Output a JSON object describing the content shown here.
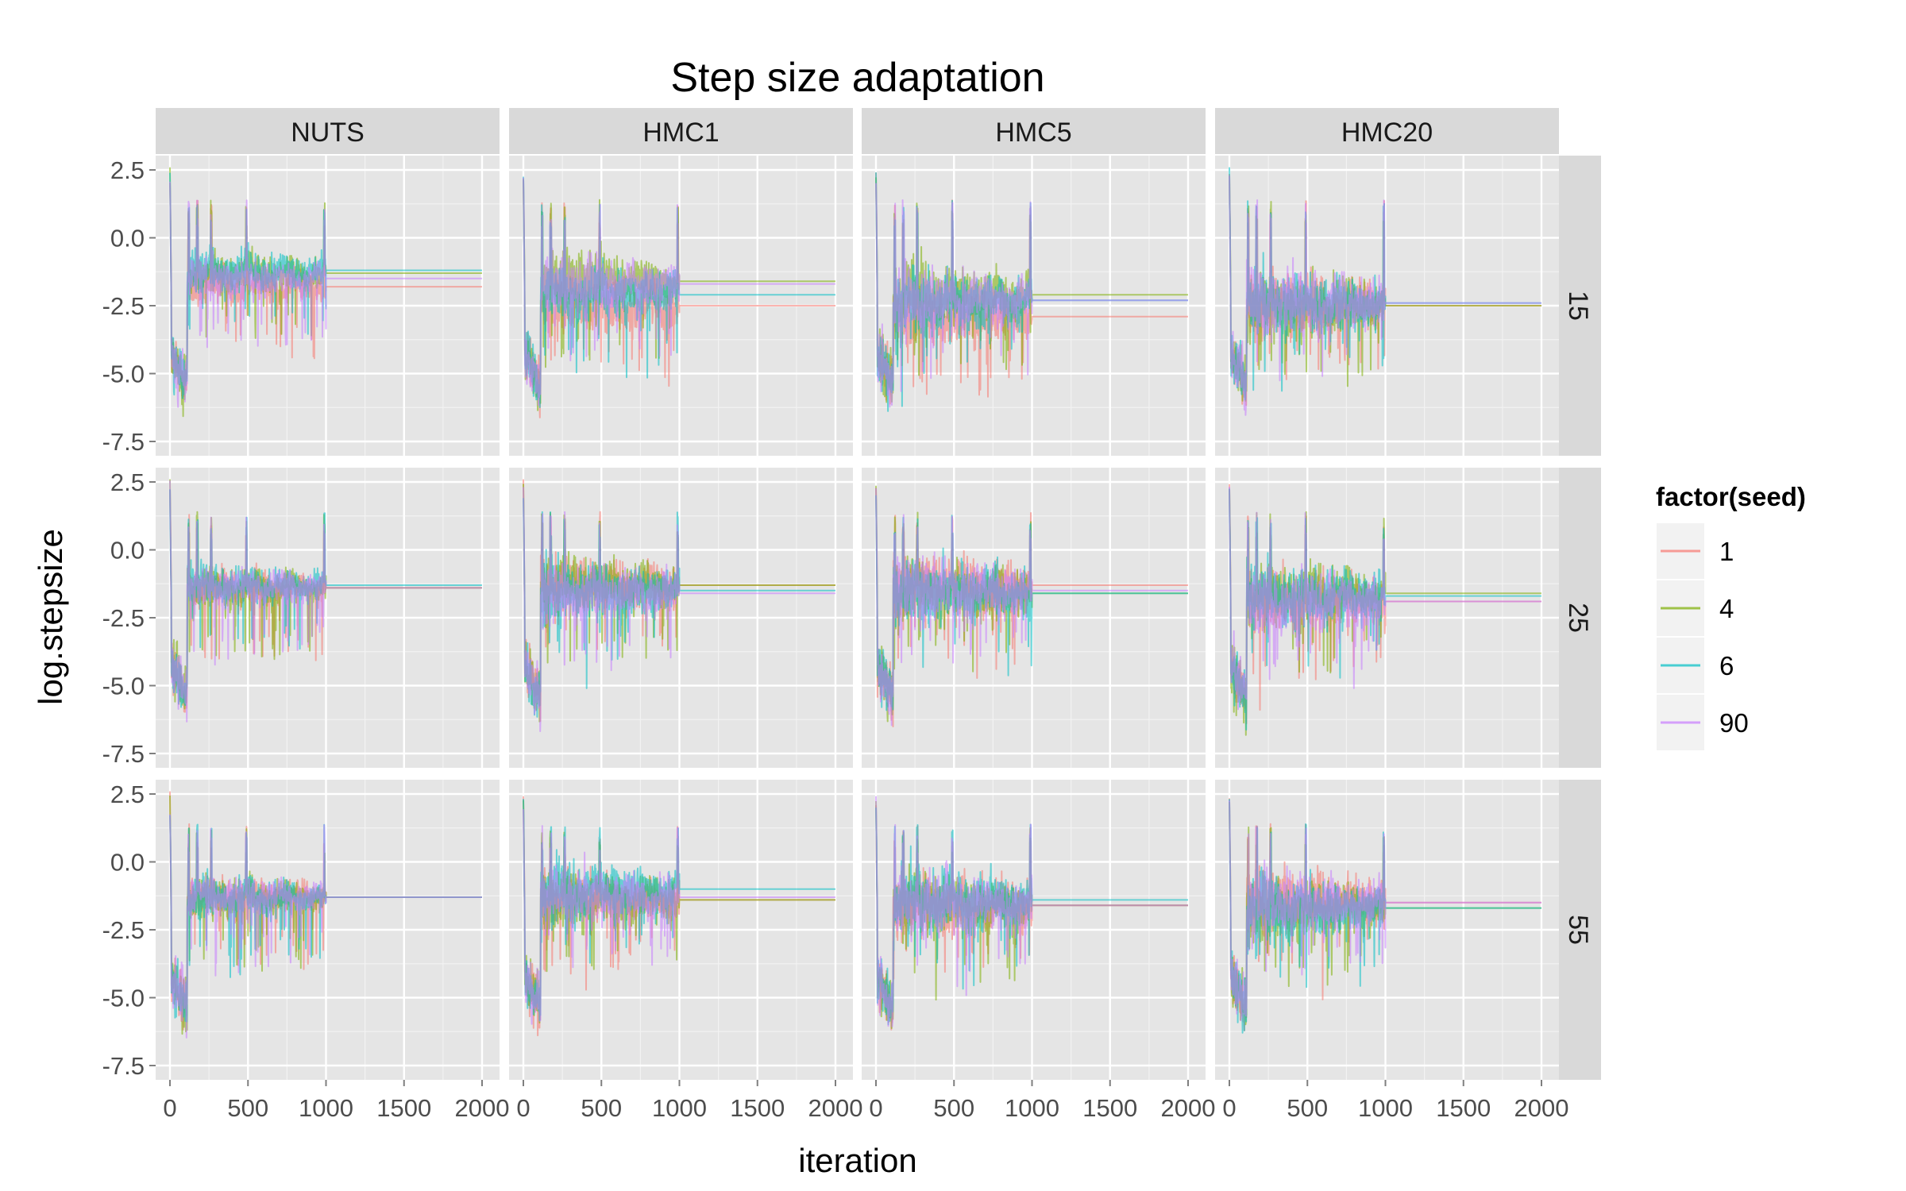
{
  "chart_data": {
    "type": "line",
    "title": "Step size adaptation",
    "xlabel": "iteration",
    "ylabel": "log.stepsize",
    "xlim": [
      0,
      2000
    ],
    "ylim": [
      -7.5,
      2.5
    ],
    "x_ticks": [
      "0",
      "500",
      "1000",
      "1500",
      "2000"
    ],
    "y_ticks": [
      "2.5",
      "0.0",
      "-2.5",
      "-5.0",
      "-7.5"
    ],
    "y_tick_values": [
      2.5,
      0.0,
      -2.5,
      -5.0,
      -7.5
    ],
    "x_tick_values": [
      0,
      500,
      1000,
      1500,
      2000
    ],
    "grid": true,
    "facet_cols": [
      "NUTS",
      "HMC1",
      "HMC5",
      "HMC20"
    ],
    "facet_rows": [
      "15",
      "25",
      "55"
    ],
    "legend": {
      "title": "factor(seed)",
      "position": "right",
      "entries": [
        {
          "label": "1",
          "color": "#F8766D"
        },
        {
          "label": "4",
          "color": "#7CAE00"
        },
        {
          "label": "6",
          "color": "#00BFC4"
        },
        {
          "label": "90",
          "color": "#C77CFF"
        }
      ]
    },
    "adaptation_end_iteration": 1000,
    "series_description_note": "",
    "panels": [
      {
        "row": "15",
        "col": "NUTS",
        "final_log_stepsize": {
          "1": -1.8,
          "4": -1.3,
          "6": -1.2,
          "90": -1.5
        }
      },
      {
        "row": "15",
        "col": "HMC1",
        "final_log_stepsize": {
          "1": -2.5,
          "4": -1.6,
          "6": -2.1,
          "90": -1.7
        }
      },
      {
        "row": "15",
        "col": "HMC5",
        "final_log_stepsize": {
          "1": -2.9,
          "4": -2.1,
          "6": -2.3,
          "90": -2.3
        }
      },
      {
        "row": "15",
        "col": "HMC20",
        "final_log_stepsize": {
          "1": -2.5,
          "4": -2.5,
          "6": -2.4,
          "90": -2.4
        }
      },
      {
        "row": "25",
        "col": "NUTS",
        "final_log_stepsize": {
          "1": -1.4,
          "4": -1.4,
          "6": -1.3,
          "90": -1.4
        }
      },
      {
        "row": "25",
        "col": "HMC1",
        "final_log_stepsize": {
          "1": -1.3,
          "4": -1.3,
          "6": -1.5,
          "90": -1.6
        }
      },
      {
        "row": "25",
        "col": "HMC5",
        "final_log_stepsize": {
          "1": -1.3,
          "4": -1.6,
          "6": -1.6,
          "90": -1.5
        }
      },
      {
        "row": "25",
        "col": "HMC20",
        "final_log_stepsize": {
          "1": -1.9,
          "4": -1.6,
          "6": -1.7,
          "90": -1.9
        }
      },
      {
        "row": "55",
        "col": "NUTS",
        "final_log_stepsize": {
          "1": -1.3,
          "4": -1.3,
          "6": -1.3,
          "90": -1.3
        }
      },
      {
        "row": "55",
        "col": "HMC1",
        "final_log_stepsize": {
          "1": -1.4,
          "4": -1.4,
          "6": -1.0,
          "90": -1.3
        }
      },
      {
        "row": "55",
        "col": "HMC5",
        "final_log_stepsize": {
          "1": -1.6,
          "4": -1.6,
          "6": -1.4,
          "90": -1.6
        }
      },
      {
        "row": "55",
        "col": "HMC20",
        "final_log_stepsize": {
          "1": -1.5,
          "4": -1.7,
          "6": -1.7,
          "90": -1.5
        }
      }
    ]
  }
}
